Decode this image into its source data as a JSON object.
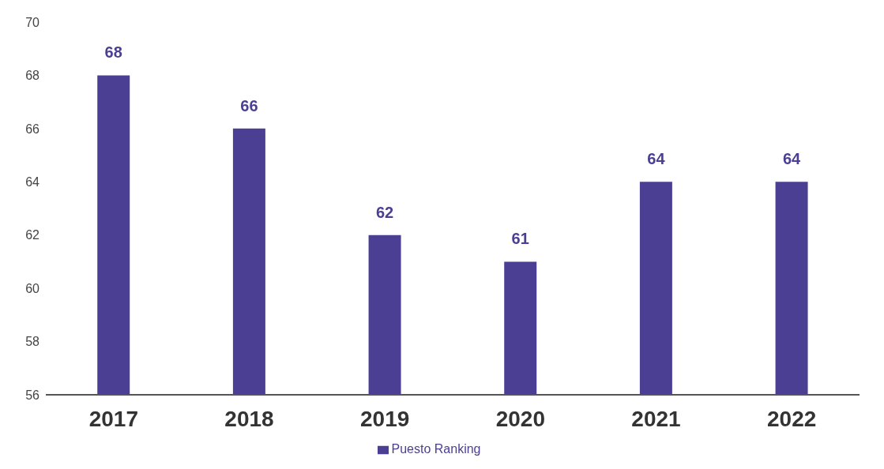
{
  "chart_data": {
    "type": "bar",
    "categories": [
      "2017",
      "2018",
      "2019",
      "2020",
      "2021",
      "2022"
    ],
    "series": [
      {
        "name": "Puesto Ranking",
        "color": "#4b3f94",
        "values": [
          68,
          66,
          62,
          61,
          64,
          64
        ]
      }
    ],
    "ylim": [
      56,
      70
    ],
    "yticks": [
      56,
      58,
      60,
      62,
      64,
      66,
      68,
      70
    ],
    "grid": false,
    "data_labels": true,
    "legend": "bottom"
  }
}
